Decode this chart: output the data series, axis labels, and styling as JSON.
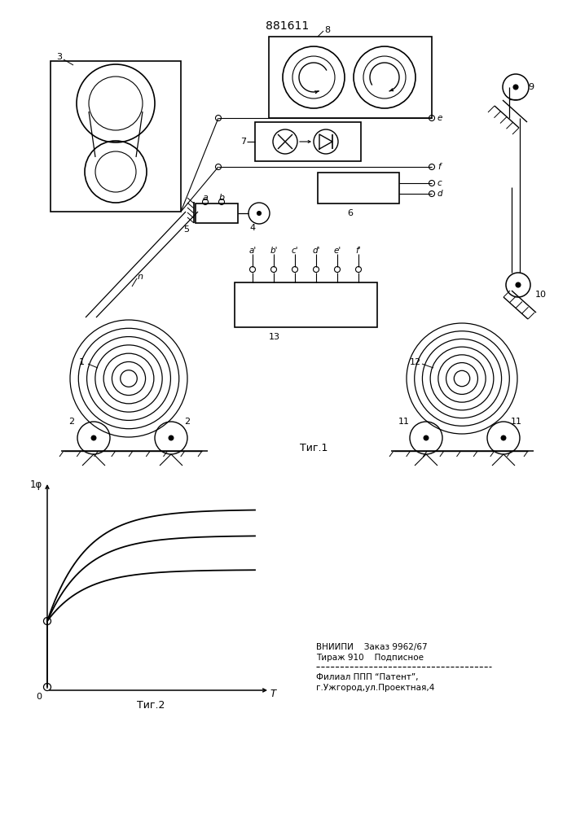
{
  "title": "881611",
  "fig_label1": "Τиг.1",
  "fig_label2": "Τиг.2",
  "graph_ylabel": "1φ",
  "graph_xlabel": "T",
  "footer_line1": "ВНИИПИ    Заказ 9962/67",
  "footer_line2": "Тираж 910    Подписное",
  "footer_line3": "Филиал ППП “Патент”,",
  "footer_line4": "г.Ужгород,ул.Проектная,4",
  "bg_color": "#ffffff"
}
